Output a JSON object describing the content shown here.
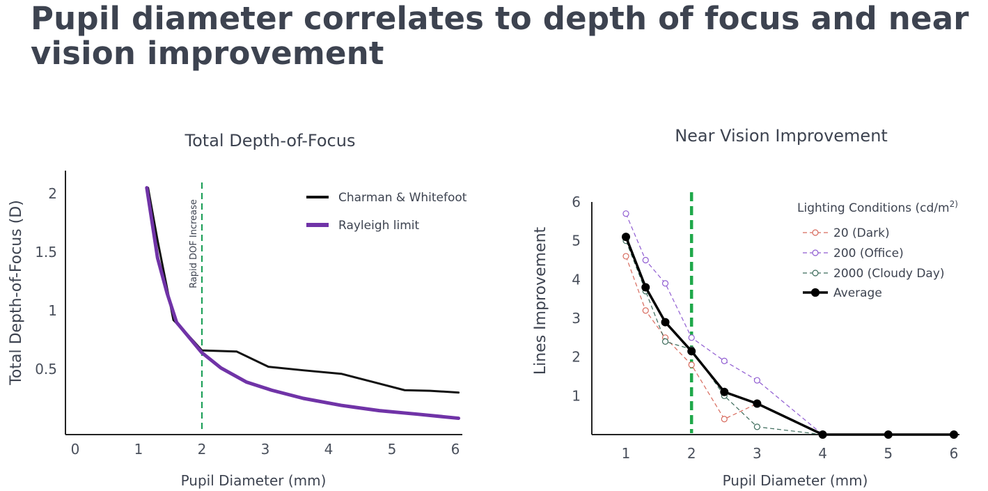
{
  "page": {
    "title": "Pupil diameter correlates to depth of focus and near vision improvement"
  },
  "chart_data": [
    {
      "type": "line",
      "title": "Total Depth-of-Focus",
      "xlabel": "Pupil Diameter (mm)",
      "ylabel": "Total Depth-of-Focus (D)",
      "xlim": [
        0,
        6
      ],
      "ylim": [
        0,
        2.2
      ],
      "xticks": [
        "0",
        "1",
        "2",
        "3",
        "4",
        "5",
        "6"
      ],
      "yticks": [
        {
          "value": 2,
          "label": "2"
        },
        {
          "value": 1.5,
          "label": "1.5"
        },
        {
          "value": 1,
          "label": "1"
        },
        {
          "value": 0.5,
          "label": "0.5"
        }
      ],
      "annotation": {
        "x": 2,
        "label": "Rapid DOF Increase",
        "color": "#1fa05a"
      },
      "legend_position": "top-right",
      "series": [
        {
          "name": "Charman & Whitefoot",
          "color": "#111111",
          "x": [
            1.15,
            1.3,
            1.55,
            1.8,
            2.0,
            2.55,
            3.05,
            3.6,
            4.2,
            4.7,
            5.2,
            5.6,
            6.05
          ],
          "y": [
            2.05,
            1.6,
            0.92,
            0.78,
            0.66,
            0.65,
            0.52,
            0.49,
            0.46,
            0.39,
            0.32,
            0.315,
            0.3
          ]
        },
        {
          "name": "Rayleigh limit",
          "color": "#7033a7",
          "x": [
            1.13,
            1.3,
            1.45,
            1.6,
            1.8,
            2.0,
            2.3,
            2.7,
            3.1,
            3.6,
            4.2,
            4.8,
            5.4,
            6.05
          ],
          "y": [
            2.05,
            1.45,
            1.15,
            0.9,
            0.77,
            0.64,
            0.51,
            0.39,
            0.32,
            0.25,
            0.19,
            0.145,
            0.115,
            0.08
          ]
        }
      ]
    },
    {
      "type": "line",
      "title": "Near Vision Improvement",
      "xlabel": "Pupil Diameter (mm)",
      "ylabel": "Lines Improvement",
      "xlim": [
        0.5,
        6
      ],
      "ylim": [
        0,
        6
      ],
      "xticks": [
        "1",
        "2",
        "3",
        "4",
        "5",
        "6"
      ],
      "yticks": [
        "1",
        "2",
        "3",
        "4",
        "5",
        "6"
      ],
      "annotation": {
        "x": 2,
        "color": "#1fa84a"
      },
      "legend_title": "Lighting Conditions (cd/m",
      "legend_title_sup": "2)",
      "legend_position": "top-right",
      "series": [
        {
          "name": "20 (Dark)",
          "color": "#d7695c",
          "style": "dashed-open",
          "x": [
            1,
            1.3,
            1.6,
            2,
            2.5,
            3
          ],
          "y": [
            4.6,
            3.2,
            2.5,
            1.8,
            0.4,
            0.8
          ]
        },
        {
          "name": "200 (Office)",
          "color": "#8f5bd1",
          "style": "dashed-open",
          "x": [
            1,
            1.3,
            1.6,
            2,
            2.5,
            3,
            4
          ],
          "y": [
            5.7,
            4.5,
            3.9,
            2.5,
            1.9,
            1.4,
            0
          ]
        },
        {
          "name": "2000 (Cloudy Day)",
          "color": "#3b6a5a",
          "style": "dashed-open",
          "x": [
            1,
            1.3,
            1.6,
            2,
            2.5,
            3,
            4
          ],
          "y": [
            5.0,
            3.7,
            2.4,
            2.2,
            1.0,
            0.2,
            0
          ]
        },
        {
          "name": "Average",
          "color": "#000000",
          "style": "solid-filled",
          "x": [
            1,
            1.3,
            1.6,
            2,
            2.5,
            3,
            4,
            5,
            6
          ],
          "y": [
            5.1,
            3.8,
            2.9,
            2.15,
            1.1,
            0.8,
            0,
            0,
            0
          ]
        }
      ]
    }
  ]
}
